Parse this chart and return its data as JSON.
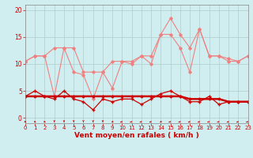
{
  "x": [
    0,
    1,
    2,
    3,
    4,
    5,
    6,
    7,
    8,
    9,
    10,
    11,
    12,
    13,
    14,
    15,
    16,
    17,
    18,
    19,
    20,
    21,
    22,
    23
  ],
  "line1_gust_high": [
    10.5,
    11.5,
    11.5,
    13.0,
    13.0,
    13.0,
    8.5,
    8.5,
    8.5,
    10.5,
    10.5,
    10.5,
    11.5,
    11.5,
    15.5,
    18.5,
    15.5,
    13.0,
    16.5,
    11.5,
    11.5,
    11.0,
    10.5,
    11.5
  ],
  "line2_gust_low": [
    10.5,
    11.5,
    11.5,
    4.0,
    13.0,
    8.5,
    8.0,
    3.5,
    8.5,
    5.5,
    10.5,
    10.0,
    11.5,
    10.0,
    15.5,
    15.5,
    13.0,
    8.5,
    16.5,
    11.5,
    11.5,
    10.5,
    10.5,
    11.5
  ],
  "line3_wind_var": [
    4.0,
    5.0,
    4.0,
    3.5,
    5.0,
    3.5,
    3.0,
    1.5,
    3.5,
    3.0,
    3.5,
    3.5,
    2.5,
    3.5,
    4.5,
    5.0,
    4.0,
    3.0,
    3.0,
    4.0,
    2.5,
    3.0,
    3.0,
    3.0
  ],
  "line4_wind_mean": [
    4.0,
    4.0,
    4.0,
    4.0,
    4.0,
    4.0,
    4.0,
    4.0,
    4.0,
    4.0,
    4.0,
    4.0,
    4.0,
    4.0,
    4.0,
    4.0,
    4.0,
    3.5,
    3.5,
    3.5,
    3.5,
    3.0,
    3.0,
    3.0
  ],
  "xlim": [
    0,
    23
  ],
  "ylim": [
    -1.0,
    21
  ],
  "yticks": [
    0,
    5,
    10,
    15,
    20
  ],
  "xticks": [
    0,
    1,
    2,
    3,
    4,
    5,
    6,
    7,
    8,
    9,
    10,
    11,
    12,
    13,
    14,
    15,
    16,
    17,
    18,
    19,
    20,
    21,
    22,
    23
  ],
  "color_light": "#f08080",
  "color_dark": "#cc0000",
  "bg_color": "#d0eef0",
  "grid_color": "#b0cccc",
  "xlabel": "Vent moyen/en rafales ( km/h )",
  "xlabel_color": "#cc0000",
  "tick_color": "#cc0000"
}
